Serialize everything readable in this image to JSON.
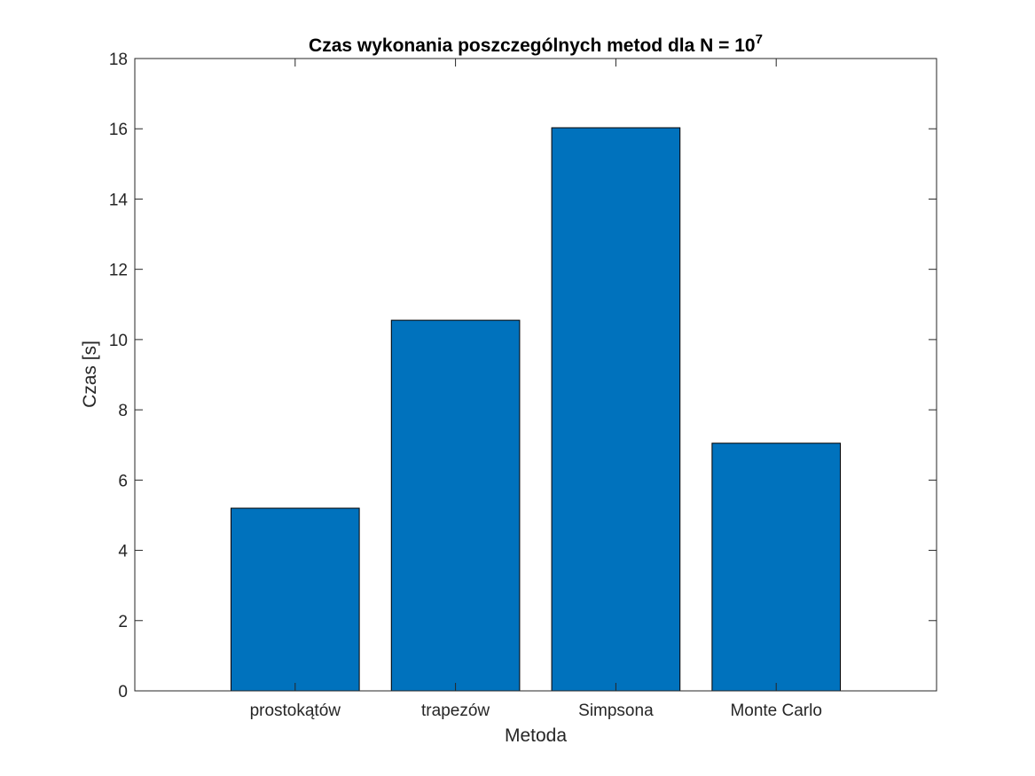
{
  "chart_data": {
    "type": "bar",
    "title": {
      "text": "Czas wykonania poszczególnych metod dla N = 10",
      "superscript": "7"
    },
    "xlabel": "Metoda",
    "ylabel": "Czas [s]",
    "categories": [
      "prostokątów",
      "trapezów",
      "Simpsona",
      "Monte Carlo"
    ],
    "values": [
      5.2,
      10.55,
      16.03,
      7.05
    ],
    "ylim": [
      0,
      18
    ],
    "yticks": [
      "0",
      "2",
      "4",
      "6",
      "8",
      "10",
      "12",
      "14",
      "16",
      "18"
    ],
    "bar_color": "#0072BD",
    "grid": false,
    "legend": "none"
  }
}
